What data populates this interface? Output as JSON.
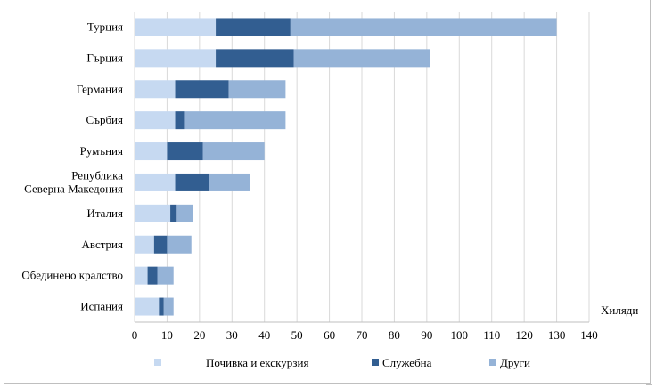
{
  "chart_data": {
    "type": "bar",
    "orientation": "horizontal",
    "stacked": true,
    "title": "",
    "xlabel": "Хиляди",
    "ylabel": "",
    "xlim": [
      0,
      140
    ],
    "xticks": [
      "0",
      "10",
      "20",
      "30",
      "40",
      "50",
      "60",
      "70",
      "80",
      "90",
      "100",
      "110",
      "120",
      "130",
      "140"
    ],
    "grid": "vertical",
    "legend_position": "bottom",
    "categories": [
      [
        "Турция"
      ],
      [
        "Гърция"
      ],
      [
        "Германия"
      ],
      [
        "Сърбия"
      ],
      [
        "Румъния"
      ],
      [
        "Република",
        "Северна Македония"
      ],
      [
        "Италия"
      ],
      [
        "Австрия"
      ],
      [
        "Обединено кралство"
      ],
      [
        "Испания"
      ]
    ],
    "series": [
      {
        "name": "Почивка и екскурзия",
        "color": "#c6d9f1",
        "values": [
          25,
          25,
          12.5,
          12.5,
          10,
          12.5,
          11,
          6,
          4,
          7.5
        ]
      },
      {
        "name": "Служебна",
        "color": "#325e91",
        "values": [
          23,
          24,
          16.5,
          3,
          11,
          10.5,
          2,
          4,
          3,
          1.5
        ]
      },
      {
        "name": "Други",
        "color": "#95b3d7",
        "values": [
          82,
          42,
          17.5,
          31,
          19,
          12.5,
          5,
          7.5,
          5,
          3
        ]
      }
    ]
  }
}
